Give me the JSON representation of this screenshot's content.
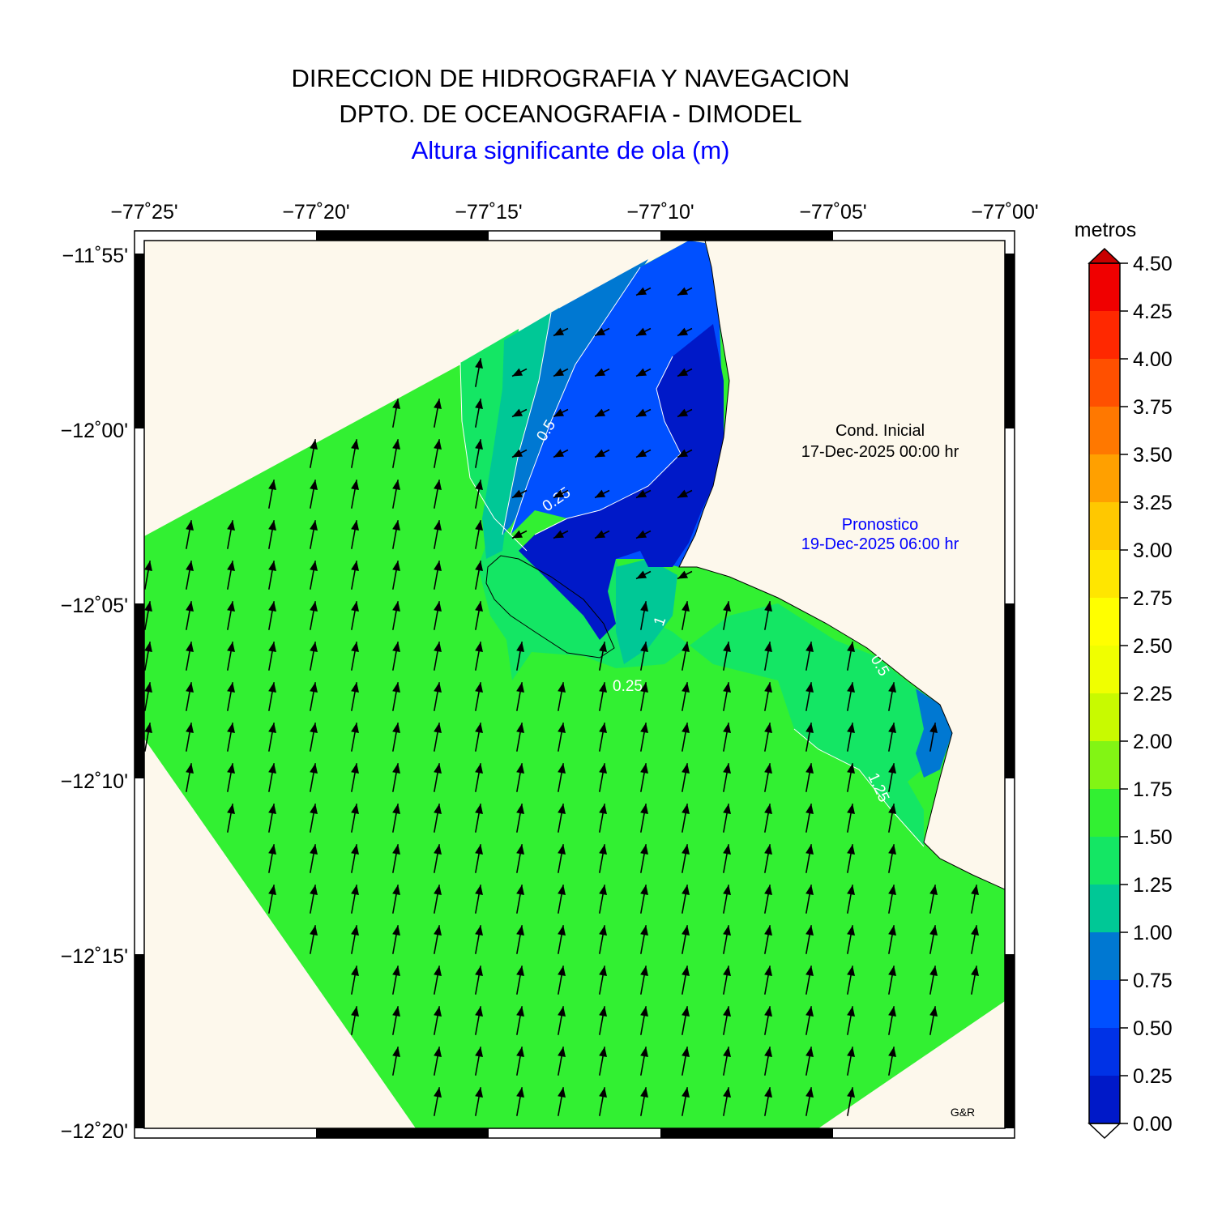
{
  "header": {
    "line1": "DIRECCION DE HIDROGRAFIA Y NAVEGACION",
    "line2": "DPTO. DE OCEANOGRAFIA - DIMODEL",
    "line3": "Altura significante de ola (m)"
  },
  "axes": {
    "x_ticks": [
      "−77˚25'",
      "−77˚20'",
      "−77˚15'",
      "−77˚10'",
      "−77˚05'",
      "−77˚00'"
    ],
    "y_ticks": [
      "−11˚55'",
      "−12˚00'",
      "−12˚05'",
      "−12˚10'",
      "−12˚15'",
      "−12˚20'"
    ]
  },
  "info": {
    "initial_label": "Cond. Inicial",
    "initial_date": "17-Dec-2025 00:00 hr",
    "forecast_label": "Pronostico",
    "forecast_date": "19-Dec-2025 06:00 hr",
    "credit": "G&R"
  },
  "contour_labels": [
    "0.5",
    "0.25",
    "1",
    "0.25",
    "0.5",
    "1.25"
  ],
  "colorbar": {
    "unit": "metros",
    "levels": [
      "0.00",
      "0.25",
      "0.50",
      "0.75",
      "1.00",
      "1.25",
      "1.50",
      "1.75",
      "2.00",
      "2.25",
      "2.50",
      "2.75",
      "3.00",
      "3.25",
      "3.50",
      "3.75",
      "4.00",
      "4.25",
      "4.50"
    ],
    "colors": [
      "#0019c8",
      "#0032e6",
      "#0050ff",
      "#0078d2",
      "#00c896",
      "#14e664",
      "#32f032",
      "#82f514",
      "#c8fa00",
      "#f0ff00",
      "#ffff00",
      "#ffe600",
      "#ffc800",
      "#ffa000",
      "#ff7800",
      "#ff5000",
      "#ff2800",
      "#f00000",
      "#c80000"
    ]
  },
  "colors": {
    "land": "#fdf8ec",
    "sea_main": "#32f032",
    "arrow": "#000000",
    "title_blue": "#0000ff"
  }
}
